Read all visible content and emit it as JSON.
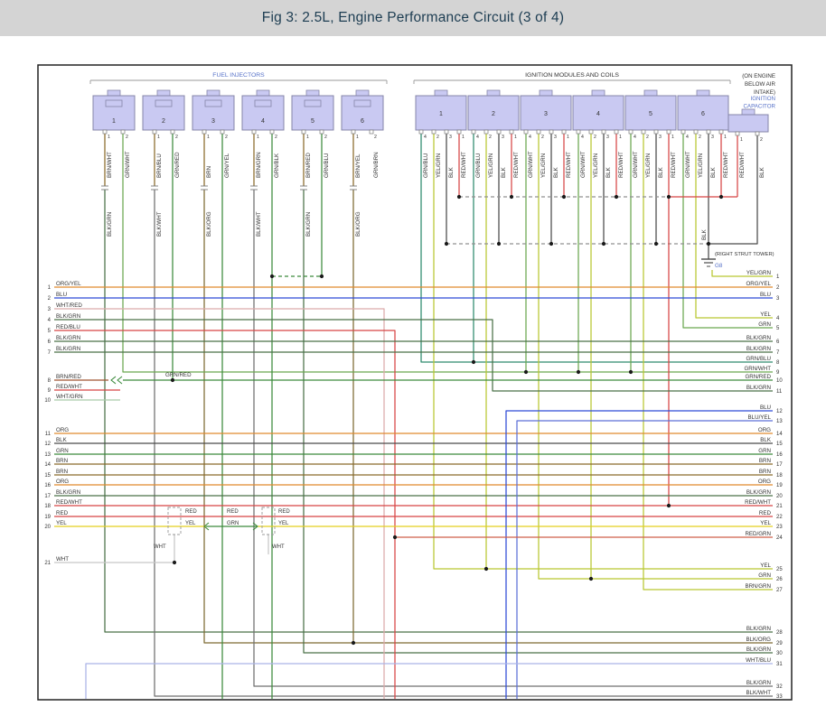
{
  "title": "Fig 3: 2.5L, Engine Performance Circuit (3 of 4)",
  "colors": {
    "title_bg": "#d4d4d4",
    "title_text": "#1d3d52",
    "label_blue": "#5671c8",
    "box_fill": "#c9c9f2",
    "box_stroke": "#8585a8",
    "text": "#333333",
    "BRN": "#8a6a2a",
    "GRN": "#3c8a3c",
    "GRNL": "#6aa84f",
    "TEAL": "#2f8a6e",
    "DGN": "#4a7048",
    "YEL": "#e3cf1d",
    "YGN": "#b9c832",
    "RED": "#d64545",
    "BLU": "#2f4bd6",
    "BLUL": "#5c6fd8",
    "ORG": "#e08a2e",
    "BLK": "#4a4a4a",
    "GRY": "#909090",
    "WHT": "#c6c6c6",
    "WRD": "#dcaaaa",
    "WGN": "#a9c9a9",
    "WBL": "#aab3e6",
    "BRD": "#a05530",
    "BWH": "#6f6f6f",
    "BOR": "#7d6a33",
    "RGN": "#cf5f49"
  },
  "diagram": {
    "fuel_injectors": {
      "label": "FUEL INJECTORS",
      "connectors": [
        {
          "num": "1",
          "pins": [
            {
              "n": "1",
              "wire": "BRN/WHT"
            },
            {
              "n": "2",
              "wire": "GRN/WHT"
            }
          ]
        },
        {
          "num": "2",
          "pins": [
            {
              "n": "1",
              "wire": "BRN/BLU"
            },
            {
              "n": "2",
              "wire": "GRN/RED"
            }
          ]
        },
        {
          "num": "3",
          "pins": [
            {
              "n": "1",
              "wire": "BRN"
            },
            {
              "n": "2",
              "wire": "GRN/YEL"
            }
          ]
        },
        {
          "num": "4",
          "pins": [
            {
              "n": "1",
              "wire": "BRN/GRN"
            },
            {
              "n": "2",
              "wire": "GRN/BLK"
            }
          ]
        },
        {
          "num": "5",
          "pins": [
            {
              "n": "1",
              "wire": "BRN/RED"
            },
            {
              "n": "2",
              "wire": "GRN/BLU"
            }
          ]
        },
        {
          "num": "6",
          "pins": [
            {
              "n": "1",
              "wire": "BRN/YEL"
            },
            {
              "n": "2",
              "wire": "GRN/BRN"
            }
          ]
        }
      ],
      "lower_wire_labels": [
        "BLK/GRN",
        "BLK/WHT",
        "BLK/ORG",
        "BLK/WHT",
        "BLK/GRN",
        "BLK/ORG"
      ]
    },
    "ignition_coils": {
      "label": "IGNITION MODULES AND COILS",
      "connectors": [
        {
          "num": "1",
          "pins": [
            {
              "n": "4",
              "wire": "GRN/BLU"
            },
            {
              "n": "2",
              "wire": "YEL/GRN"
            },
            {
              "n": "3",
              "wire": "BLK"
            },
            {
              "n": "1",
              "wire": "RED/WHT"
            }
          ]
        },
        {
          "num": "2",
          "pins": [
            {
              "n": "4",
              "wire": "GRN/BLU"
            },
            {
              "n": "2",
              "wire": "YEL/GRN"
            },
            {
              "n": "3",
              "wire": "BLK"
            },
            {
              "n": "1",
              "wire": "RED/WHT"
            }
          ]
        },
        {
          "num": "3",
          "pins": [
            {
              "n": "4",
              "wire": "GRN/WHT"
            },
            {
              "n": "2",
              "wire": "YEL/GRN"
            },
            {
              "n": "3",
              "wire": "BLK"
            },
            {
              "n": "1",
              "wire": "RED/WHT"
            }
          ]
        },
        {
          "num": "4",
          "pins": [
            {
              "n": "4",
              "wire": "GRN/WHT"
            },
            {
              "n": "2",
              "wire": "YEL/GRN"
            },
            {
              "n": "3",
              "wire": "BLK"
            },
            {
              "n": "1",
              "wire": "RED/WHT"
            }
          ]
        },
        {
          "num": "5",
          "pins": [
            {
              "n": "4",
              "wire": "GRN/WHT"
            },
            {
              "n": "2",
              "wire": "YEL/GRN"
            },
            {
              "n": "3",
              "wire": "BLK"
            },
            {
              "n": "1",
              "wire": "RED/WHT"
            }
          ]
        },
        {
          "num": "6",
          "pins": [
            {
              "n": "4",
              "wire": "GRN/WHT"
            },
            {
              "n": "2",
              "wire": "YEL/GRN"
            },
            {
              "n": "3",
              "wire": "BLK"
            },
            {
              "n": "1",
              "wire": "RED/WHT"
            }
          ]
        }
      ]
    },
    "capacitor": {
      "location_note": [
        "(ON ENGINE",
        "BELOW AIR",
        "INTAKE)"
      ],
      "label_lines": [
        "IGNITION",
        "CAPACITOR"
      ],
      "pins": [
        {
          "n": "1",
          "wire": "RED/WHT"
        },
        {
          "n": "2",
          "wire": "BLK"
        }
      ]
    },
    "ground": {
      "note": "(RIGHT STRUT TOWER)",
      "id": "G8",
      "wire": "BLK"
    },
    "left_pins": [
      {
        "num": "1",
        "label": "ORG/YEL"
      },
      {
        "num": "2",
        "label": "BLU"
      },
      {
        "num": "3",
        "label": "WHT/RED"
      },
      {
        "num": "4",
        "label": "BLK/GRN"
      },
      {
        "num": "5",
        "label": "RED/BLU"
      },
      {
        "num": "6",
        "label": "BLK/GRN"
      },
      {
        "num": "7",
        "label": "BLK/GRN"
      },
      {
        "num": "8",
        "label": "BRN/RED"
      },
      {
        "num": "9",
        "label": "RED/WHT"
      },
      {
        "num": "10",
        "label": "WHT/GRN"
      },
      {
        "num": "11",
        "label": "ORG"
      },
      {
        "num": "12",
        "label": "BLK"
      },
      {
        "num": "13",
        "label": "GRN"
      },
      {
        "num": "14",
        "label": "BRN"
      },
      {
        "num": "15",
        "label": "BRN"
      },
      {
        "num": "16",
        "label": "ORG"
      },
      {
        "num": "17",
        "label": "BLK/GRN"
      },
      {
        "num": "18",
        "label": "RED/WHT"
      },
      {
        "num": "19",
        "label": "RED"
      },
      {
        "num": "20",
        "label": "YEL"
      },
      {
        "num": "21",
        "label": "WHT"
      }
    ],
    "right_pins": [
      {
        "num": "1",
        "label": "YEL/GRN"
      },
      {
        "num": "2",
        "label": "ORG/YEL"
      },
      {
        "num": "3",
        "label": "BLU"
      },
      {
        "num": "4",
        "label": "YEL"
      },
      {
        "num": "5",
        "label": "GRN"
      },
      {
        "num": "6",
        "label": "BLK/GRN"
      },
      {
        "num": "7",
        "label": "BLK/GRN"
      },
      {
        "num": "8",
        "label": "GRN/BLU"
      },
      {
        "num": "9",
        "label": "GRN/WHT"
      },
      {
        "num": "10",
        "label": "GRN/RED"
      },
      {
        "num": "11",
        "label": "BLK/GRN"
      },
      {
        "num": "12",
        "label": "BLU"
      },
      {
        "num": "13",
        "label": "BLU/YEL"
      },
      {
        "num": "14",
        "label": "ORG"
      },
      {
        "num": "15",
        "label": "BLK"
      },
      {
        "num": "16",
        "label": "GRN"
      },
      {
        "num": "17",
        "label": "BRN"
      },
      {
        "num": "18",
        "label": "BRN"
      },
      {
        "num": "19",
        "label": "ORG"
      },
      {
        "num": "20",
        "label": "BLK/GRN"
      },
      {
        "num": "21",
        "label": "RED/WHT"
      },
      {
        "num": "22",
        "label": "RED"
      },
      {
        "num": "23",
        "label": "YEL"
      },
      {
        "num": "24",
        "label": "RED/GRN"
      },
      {
        "num": "25",
        "label": "YEL"
      },
      {
        "num": "26",
        "label": "GRN"
      },
      {
        "num": "27",
        "label": "BRN/GRN"
      },
      {
        "num": "28",
        "label": "BLK/GRN"
      },
      {
        "num": "29",
        "label": "BLK/ORG"
      },
      {
        "num": "30",
        "label": "BLK/GRN"
      },
      {
        "num": "31",
        "label": "WHT/BLU"
      },
      {
        "num": "32",
        "label": "BLK/GRN"
      },
      {
        "num": "33",
        "label": "BLK/WHT"
      }
    ],
    "inline_labels": {
      "splice_grn_red": "GRN/RED",
      "connector_red": [
        "RED",
        "RED",
        "RED"
      ],
      "connector_row20": [
        "YEL",
        "GRN",
        "YEL"
      ],
      "wht_stubs": [
        "WHT",
        "WHT"
      ]
    }
  }
}
